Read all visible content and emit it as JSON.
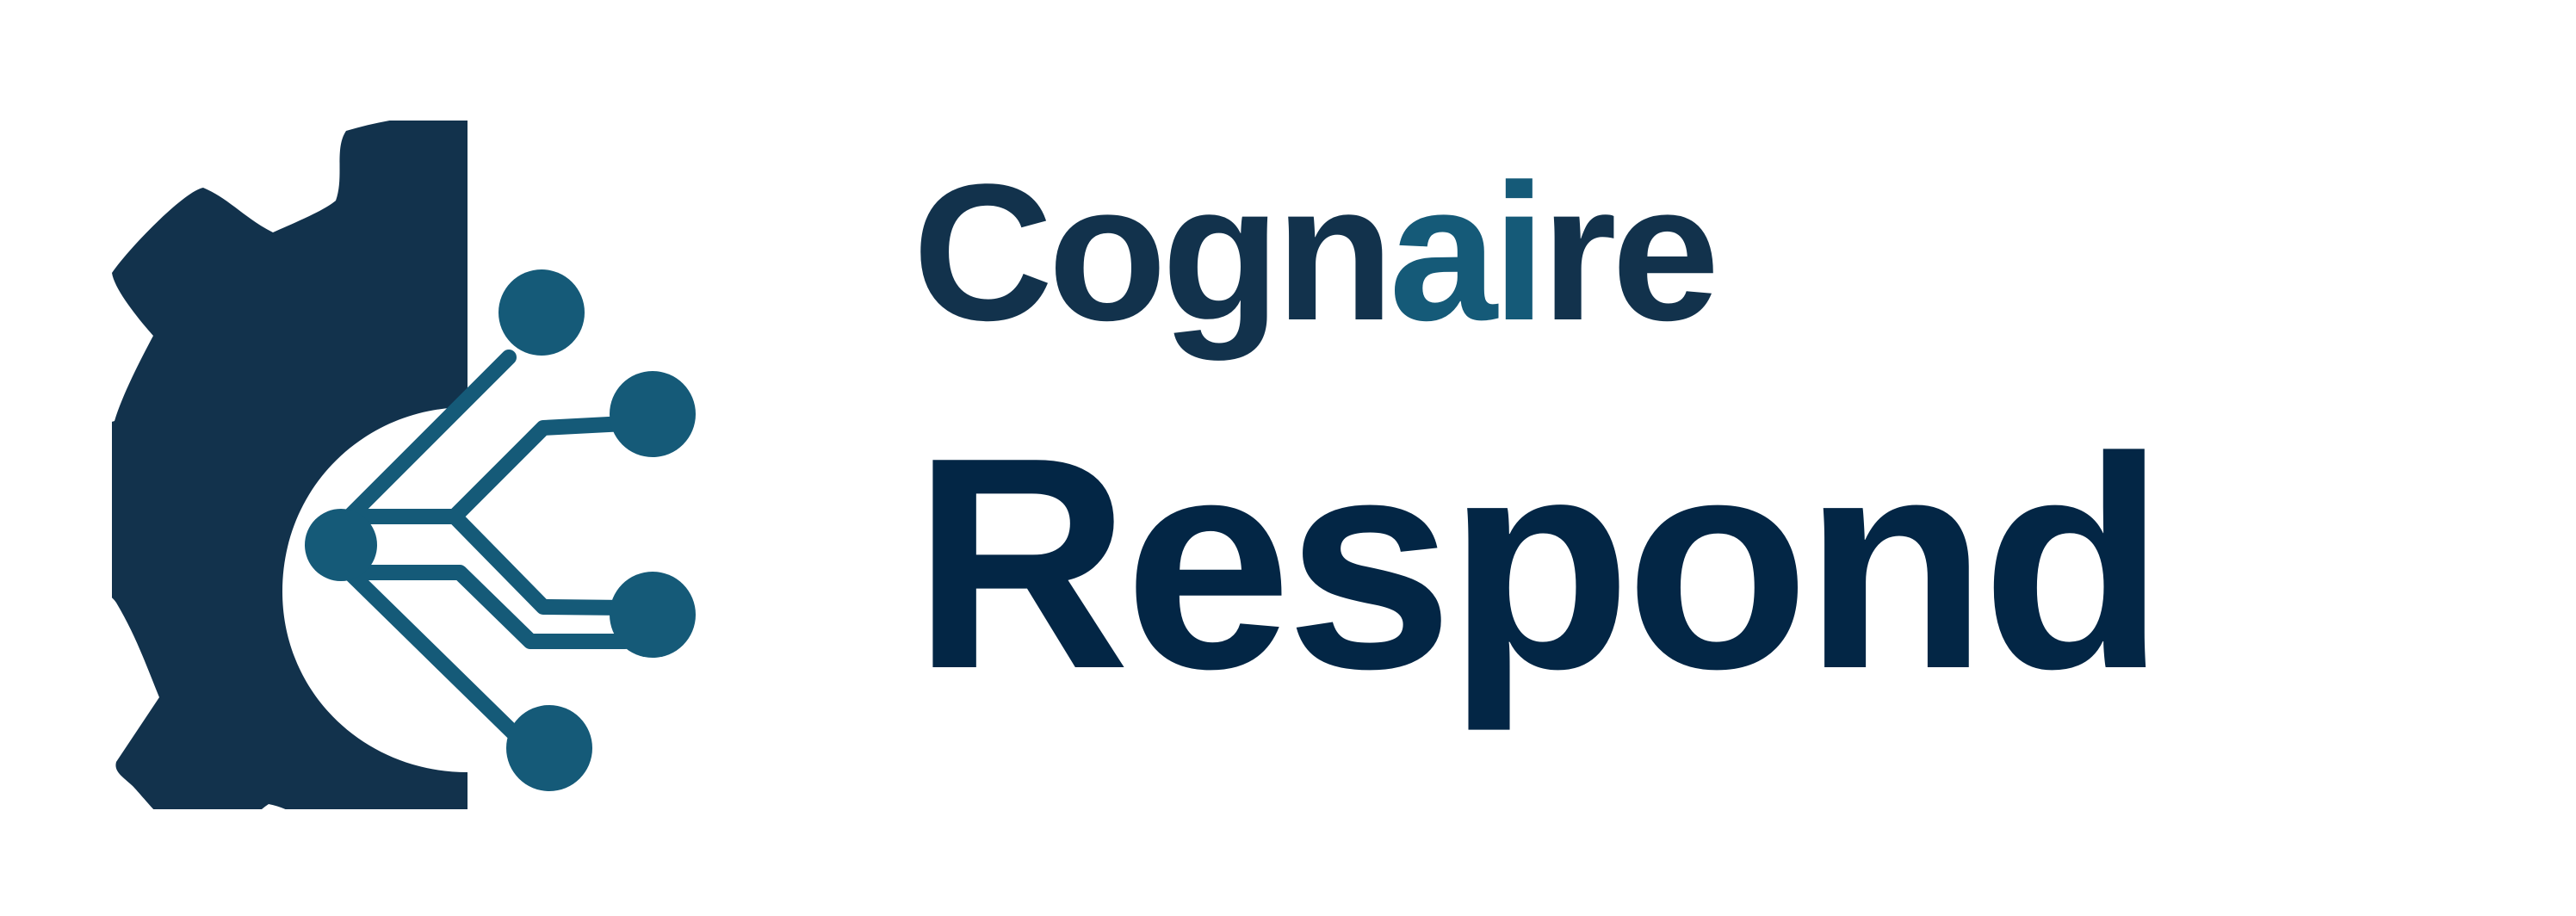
{
  "brand": {
    "primary_word": "Cognaire",
    "secondary_word": "Respond",
    "primary_parts": {
      "before_accent": "Cogn",
      "accent": "ai",
      "after_accent": "re"
    }
  },
  "colors": {
    "navy": "#12324c",
    "deep_navy": "#032645",
    "teal": "#155a78",
    "background": "#ffffff"
  },
  "icons": {
    "logo_mark": "gear-circuit-logo-icon"
  }
}
